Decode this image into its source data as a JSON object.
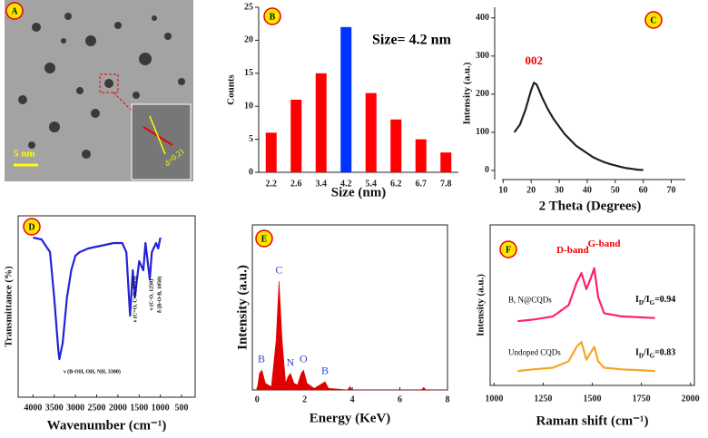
{
  "image_panel": {
    "label": "A",
    "scale_bar": "5 nm",
    "inset_label": "d=0.21"
  },
  "chart_data": [
    {
      "type": "bar",
      "label": "B",
      "annotation": "Size= 4.2 nm",
      "xlabel": "Size (nm)",
      "ylabel": "Counts",
      "categories": [
        "2.2",
        "2.6",
        "3.4",
        "4.2",
        "5.4",
        "6.2",
        "6.7",
        "7.8"
      ],
      "values": [
        6,
        11,
        15,
        22,
        12,
        8,
        5,
        3
      ],
      "colors": [
        "#ff0000",
        "#ff0000",
        "#ff0000",
        "#0033ff",
        "#ff0000",
        "#ff0000",
        "#ff0000",
        "#ff0000"
      ],
      "ylim": [
        0,
        25
      ],
      "yticks": [
        0,
        5,
        10,
        15,
        20,
        25
      ]
    },
    {
      "type": "line",
      "label": "C",
      "annotation": "002",
      "xlabel": "2 Theta  (Degrees)",
      "ylabel": "Intensity (a.u.)",
      "x": [
        14,
        16,
        18,
        20,
        21,
        22,
        24,
        26,
        28,
        30,
        32,
        34,
        36,
        38,
        40,
        42,
        44,
        46,
        48,
        50,
        52,
        54,
        56,
        58,
        60
      ],
      "series": [
        {
          "color": "#222222",
          "values": [
            100,
            120,
            160,
            210,
            230,
            225,
            190,
            160,
            135,
            115,
            95,
            80,
            65,
            55,
            45,
            35,
            28,
            22,
            17,
            13,
            9,
            6,
            4,
            2,
            1
          ]
        }
      ],
      "xlim": [
        7,
        75
      ],
      "xticks": [
        10,
        20,
        30,
        40,
        50,
        60,
        70
      ],
      "ylim": [
        -24,
        428
      ],
      "yticks": [
        0,
        100,
        200,
        300,
        400
      ]
    },
    {
      "type": "line",
      "label": "D",
      "xlabel": "Wavenumber (cm⁻¹)",
      "ylabel": "Transmittance (%)",
      "annotations": [
        "ν (B-OH, OH, NH, 3380)",
        "ν (C=O, C=N, 1713)",
        "ν (C-O, 1250)",
        "δ (B-O-B, 1050)"
      ],
      "x": [
        4000,
        3800,
        3600,
        3500,
        3400,
        3380,
        3300,
        3200,
        3100,
        3000,
        2900,
        2700,
        2500,
        2300,
        2100,
        1900,
        1800,
        1713,
        1650,
        1600,
        1500,
        1400,
        1350,
        1250,
        1200,
        1100,
        1050,
        1000
      ],
      "series": [
        {
          "color": "#2323d8",
          "values": [
            88,
            87,
            80,
            55,
            25,
            21,
            30,
            55,
            70,
            78,
            80,
            82,
            83,
            84,
            85,
            85,
            80,
            45,
            70,
            55,
            75,
            70,
            85,
            65,
            80,
            85,
            82,
            88
          ]
        }
      ],
      "xlim": [
        4350,
        180
      ],
      "xticks": [
        4000,
        3500,
        3000,
        2500,
        2000,
        1500,
        1000,
        500
      ],
      "ylim": [
        0,
        100
      ]
    },
    {
      "type": "area",
      "label": "E",
      "xlabel": "Energy (KeV)",
      "ylabel": "Intensity (a.u.)",
      "peak_labels": [
        "B",
        "C",
        "N",
        "O",
        "B"
      ],
      "x": [
        0,
        0.1,
        0.2,
        0.35,
        0.6,
        0.8,
        0.92,
        1.05,
        1.2,
        1.3,
        1.4,
        1.55,
        1.7,
        1.85,
        1.95,
        2.1,
        2.4,
        2.75,
        2.85,
        3.0,
        3.8,
        3.9,
        4.0,
        6.9,
        7.0,
        7.1,
        8
      ],
      "series": [
        {
          "color": "#e00000",
          "values": [
            0,
            10,
            12,
            4,
            2,
            30,
            66,
            30,
            4,
            8,
            10,
            4,
            3,
            10,
            12,
            4,
            1,
            4,
            5,
            1,
            0,
            2,
            0,
            0,
            1.5,
            0,
            0
          ]
        }
      ],
      "xlim": [
        -0.2,
        8
      ],
      "xticks": [
        0,
        2,
        4,
        6,
        8
      ],
      "ylim": [
        0,
        100
      ]
    },
    {
      "type": "line",
      "label": "F",
      "xlabel": "Raman shift (cm⁻¹)",
      "ylabel": "Intensity (a.u.)",
      "band_labels": [
        "D-band",
        "G-band"
      ],
      "ratio_labels": [
        [
          "I",
          "D",
          "/I",
          "G",
          "=0.94"
        ],
        [
          "I",
          "D",
          "/I",
          "G",
          "=0.83"
        ]
      ],
      "x": [
        1120,
        1200,
        1300,
        1380,
        1420,
        1445,
        1470,
        1490,
        1510,
        1530,
        1560,
        1650,
        1820
      ],
      "series": [
        {
          "name": "B, N@CQDs",
          "color": "#ff1f6e",
          "values": [
            40,
            41,
            43,
            50,
            64,
            70,
            60,
            66,
            73,
            55,
            45,
            43,
            42
          ]
        },
        {
          "name": "Undoped CQDs",
          "color": "#f5a623",
          "values": [
            9,
            10,
            11,
            15,
            24,
            27,
            16,
            20,
            24,
            15,
            11,
            10,
            9
          ]
        }
      ],
      "xlim": [
        980,
        2020
      ],
      "xticks": [
        1000,
        1250,
        1500,
        1750,
        2000
      ],
      "ylim": [
        0,
        100
      ]
    }
  ]
}
